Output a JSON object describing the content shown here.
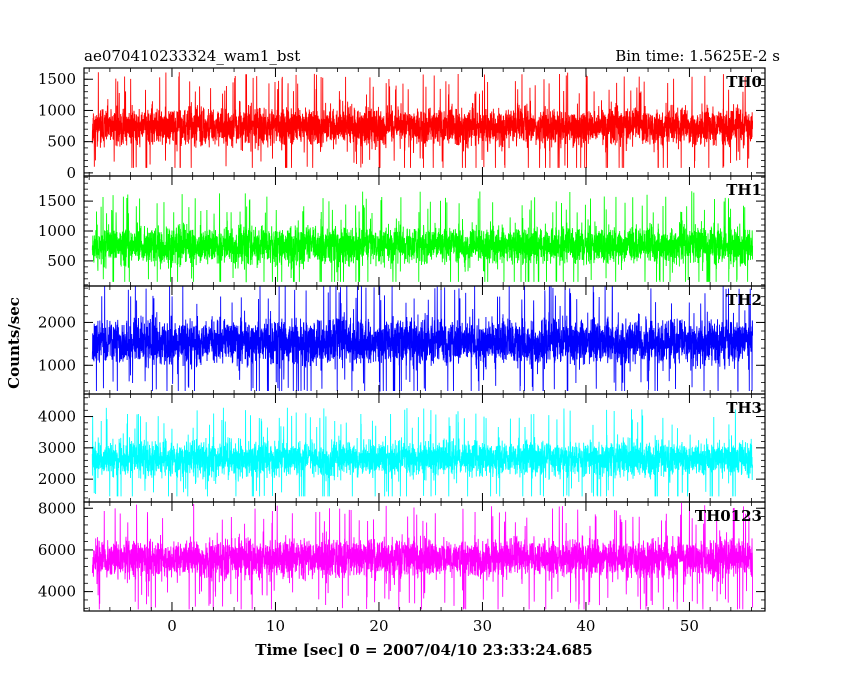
{
  "header": {
    "title": "ae070410233324_wam1_bst",
    "bin_time": "Bin time: 1.5625E-2 s"
  },
  "chart_data": {
    "type": "line",
    "title": "ae070410233324_wam1_bst",
    "subtitle": "Bin time: 1.5625E-2 s",
    "xlabel": "Time [sec] 0 = 2007/04/10 23:33:24.685",
    "ylabel": "Counts/sec",
    "xlim": [
      -8.5,
      57.3
    ],
    "x_ticks": [
      0,
      10,
      20,
      30,
      40,
      50
    ],
    "data_x_range": [
      -7.7,
      56.1
    ],
    "grid": false,
    "panels": [
      {
        "name": "TH0",
        "color": "#ff0000",
        "ylim": [
          -50,
          1680
        ],
        "y_ticks": [
          0,
          500,
          1000,
          1500
        ],
        "min": 80,
        "max": 1650,
        "mean": 740,
        "spread": 230,
        "seed": 11
      },
      {
        "name": "TH1",
        "color": "#00ff00",
        "ylim": [
          80,
          1920
        ],
        "y_ticks": [
          500,
          1000,
          1500
        ],
        "min": 150,
        "max": 1900,
        "mean": 760,
        "spread": 240,
        "seed": 23
      },
      {
        "name": "TH2",
        "color": "#0000ff",
        "ylim": [
          330,
          2850
        ],
        "y_ticks": [
          1000,
          2000
        ],
        "min": 400,
        "max": 2850,
        "mean": 1550,
        "spread": 400,
        "seed": 37
      },
      {
        "name": "TH3",
        "color": "#00ffff",
        "ylim": [
          1270,
          4720
        ],
        "y_ticks": [
          2000,
          3000,
          4000
        ],
        "min": 1450,
        "max": 4600,
        "mean": 2650,
        "spread": 430,
        "seed": 41
      },
      {
        "name": "TH0123",
        "color": "#ff00ff",
        "ylim": [
          3070,
          8300
        ],
        "y_ticks": [
          4000,
          6000,
          8000
        ],
        "min": 3150,
        "max": 8300,
        "mean": 5600,
        "spread": 700,
        "seed": 53
      }
    ]
  }
}
